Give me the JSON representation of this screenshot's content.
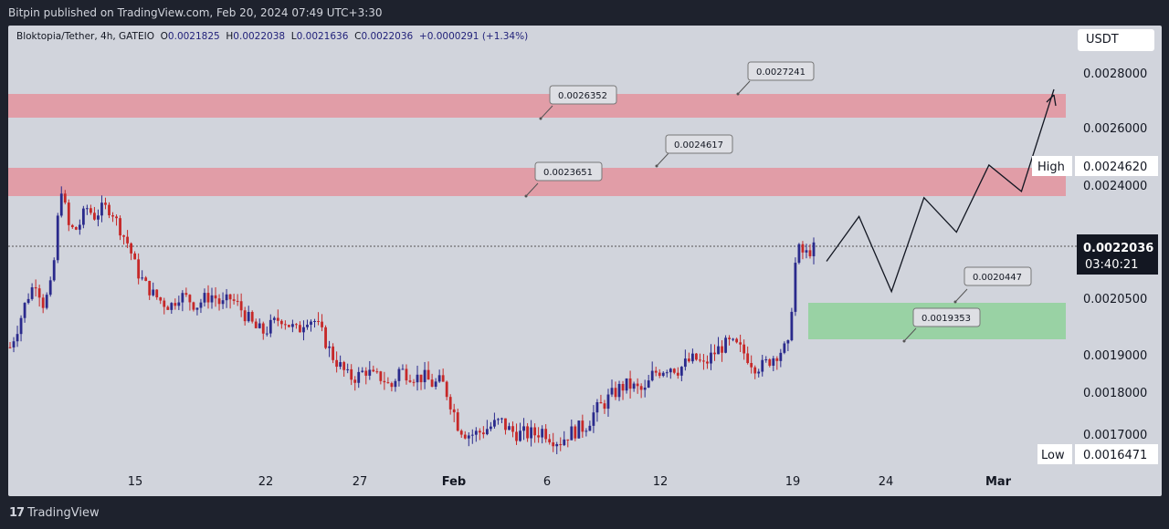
{
  "header": {
    "published": "Bitpin published on TradingView.com, Feb 20, 2024 07:49 UTC+3:30"
  },
  "legend": {
    "symbol": "Bloktopia/Tether, 4h, GATEIO",
    "open_k": "O",
    "open": "0.0021825",
    "high_k": "H",
    "high": "0.0022038",
    "low_k": "L",
    "low": "0.0021636",
    "close_k": "C",
    "close": "0.0022036",
    "change": "+0.0000291 (+1.34%)"
  },
  "unit_button": "USDT",
  "footer": {
    "brand": "TradingView",
    "logo_icon": "tradingview-logo-icon"
  },
  "colors": {
    "up": "#2a2a8c",
    "down": "#c62828",
    "resistance_zone": "#e4939d",
    "support_zone": "#8fd19a"
  },
  "chart_data": {
    "type": "candlestick",
    "x_tick_labels": [
      "15",
      "22",
      "27",
      "Feb",
      "6",
      "12",
      "19",
      "24",
      "Mar"
    ],
    "y_tick_labels": [
      "0.0028000",
      "0.0026000",
      "0.0024000",
      "0.0020500",
      "0.0019000",
      "0.0018000",
      "0.0017000"
    ],
    "price_scale_labels": {
      "high_label": "High",
      "high_value": "0.0024620",
      "low_label": "Low",
      "low_value": "0.0016471",
      "last_price": "0.0022036",
      "countdown": "03:40:21"
    },
    "resistance_zones": [
      {
        "from": 0.0023651,
        "to": 0.0024617
      },
      {
        "from": 0.0026352,
        "to": 0.0027241
      }
    ],
    "support_zone": {
      "from": 0.0019353,
      "to": 0.0020447
    },
    "callouts": [
      {
        "label": "0.0026352",
        "price": 0.0026352
      },
      {
        "label": "0.0027241",
        "price": 0.0027241
      },
      {
        "label": "0.0023651",
        "price": 0.0023651
      },
      {
        "label": "0.0024617",
        "price": 0.0024617
      },
      {
        "label": "0.0020447",
        "price": 0.0020447
      },
      {
        "label": "0.0019353",
        "price": 0.0019353
      }
    ],
    "current_price": 0.0022036,
    "price_path": [
      0.00192,
      0.00198,
      0.00205,
      0.0021,
      0.00203,
      0.0021,
      0.0024,
      0.00226,
      0.00226,
      0.00233,
      0.0023,
      0.00233,
      0.00232,
      0.00226,
      0.00221,
      0.00213,
      0.00209,
      0.00206,
      0.00204,
      0.00203,
      0.00206,
      0.00205,
      0.00203,
      0.00205,
      0.00206,
      0.00203,
      0.00205,
      0.00203,
      0.002,
      0.00197,
      0.00196,
      0.00198,
      0.002,
      0.00198,
      0.00196,
      0.002,
      0.00199,
      0.00195,
      0.0019,
      0.00187,
      0.00184,
      0.00184,
      0.00186,
      0.00184,
      0.00184,
      0.00181,
      0.00186,
      0.00185,
      0.00184,
      0.00184,
      0.00182,
      0.00183,
      0.00178,
      0.00172,
      0.0017,
      0.0017,
      0.00171,
      0.00172,
      0.00173,
      0.00171,
      0.0017,
      0.0017,
      0.0017,
      0.00171,
      0.00169,
      0.00168,
      0.0017,
      0.00171,
      0.00172,
      0.00175,
      0.00177,
      0.00179,
      0.00181,
      0.00182,
      0.00181,
      0.0018,
      0.00185,
      0.00186,
      0.00187,
      0.00186,
      0.00188,
      0.00189,
      0.00187,
      0.0019,
      0.00192,
      0.00193,
      0.00192,
      0.0019,
      0.00187,
      0.00187,
      0.00189,
      0.00191,
      0.00192,
      0.0022,
      0.00218,
      0.0022
    ],
    "projection": [
      {
        "t": 0,
        "p": 0.00216
      },
      {
        "t": 1,
        "p": 0.0023
      },
      {
        "t": 2,
        "p": 0.00207
      },
      {
        "t": 3,
        "p": 0.00236
      },
      {
        "t": 4,
        "p": 0.00225
      },
      {
        "t": 5,
        "p": 0.00247
      },
      {
        "t": 6,
        "p": 0.00238
      },
      {
        "t": 7,
        "p": 0.00274
      }
    ]
  }
}
